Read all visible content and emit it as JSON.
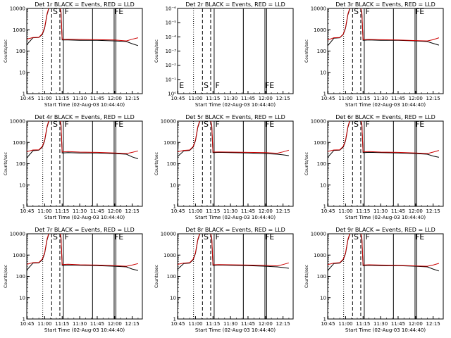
{
  "figure": {
    "start_time_label": "Start Time (02-Aug-03 10:44:40)",
    "ylabel": "Counts/sec",
    "x_tick_labels": [
      "10:45",
      "11:00",
      "11:15",
      "11:30",
      "11:45",
      "12:00",
      "12:15"
    ],
    "y_tick_labels": [
      "1",
      "10",
      "100",
      "1000",
      "10000"
    ],
    "y_tick_labels_panel2": [
      "10⁰",
      "10⁻¹",
      "10⁻²",
      "10⁻³",
      "10⁻⁴",
      "10⁻⁵",
      "10⁻⁶"
    ],
    "colors": {
      "events": "#000000",
      "lld": "#cc0000"
    }
  },
  "chart_data": [
    {
      "type": "line",
      "title": "Det 1r BLACK = Events, RED = LLD",
      "xlabel": "Start Time (02-Aug-03 10:44:40)",
      "ylabel": "Counts/sec",
      "y_scale": "log",
      "ylim": [
        1,
        10000
      ],
      "x_ticks": [
        "10:45",
        "11:00",
        "11:15",
        "11:30",
        "11:45",
        "12:00",
        "12:15"
      ],
      "markers": [
        "S",
        "F",
        "FE"
      ],
      "x": [
        "10:44",
        "10:50",
        "10:55",
        "10:58",
        "11:00",
        "11:02",
        "11:04",
        "11:06",
        "11:10",
        "11:13",
        "11:14",
        "11:15",
        "11:20",
        "11:30",
        "11:45",
        "12:00",
        "12:10",
        "12:15",
        "12:20"
      ],
      "series": [
        {
          "name": "Events",
          "values": [
            180,
            420,
            430,
            600,
            1200,
            5000,
            12000,
            12000,
            12000,
            11000,
            6000,
            330,
            330,
            320,
            320,
            300,
            280,
            220,
            180
          ]
        },
        {
          "name": "LLD",
          "values": [
            350,
            430,
            440,
            650,
            1300,
            5500,
            13000,
            13000,
            13000,
            12000,
            7000,
            350,
            360,
            350,
            340,
            330,
            300,
            360,
            420
          ]
        }
      ]
    },
    {
      "type": "line",
      "title": "Det 2r BLACK = Events, RED = LLD",
      "xlabel": "Start Time (02-Aug-03 10:44:40)",
      "ylabel": "Counts/sec",
      "y_scale": "log",
      "ylim": [
        1,
        1e-06
      ],
      "x_ticks": [
        "10:45",
        "11:00",
        "11:15",
        "11:30",
        "11:45",
        "12:00",
        "12:15"
      ],
      "markers": [
        "E",
        "S",
        "F",
        "FE"
      ],
      "x": [],
      "series": []
    },
    {
      "type": "line",
      "title": "Det 3r BLACK = Events, RED = LLD",
      "xlabel": "Start Time (02-Aug-03 10:44:40)",
      "ylabel": "Counts/sec",
      "y_scale": "log",
      "ylim": [
        1,
        10000
      ],
      "x_ticks": [
        "10:45",
        "11:00",
        "11:15",
        "11:30",
        "11:45",
        "12:00",
        "12:15"
      ],
      "markers": [
        "S",
        "F",
        "FE"
      ],
      "x": [
        "10:44",
        "10:50",
        "10:55",
        "10:58",
        "11:00",
        "11:02",
        "11:04",
        "11:06",
        "11:10",
        "11:13",
        "11:14",
        "11:15",
        "11:20",
        "11:30",
        "11:45",
        "12:00",
        "12:10",
        "12:15",
        "12:20"
      ],
      "series": [
        {
          "name": "Events",
          "values": [
            160,
            400,
            420,
            600,
            1200,
            5000,
            11000,
            11000,
            11000,
            10000,
            5000,
            320,
            330,
            320,
            320,
            300,
            280,
            230,
            190
          ]
        },
        {
          "name": "LLD",
          "values": [
            320,
            420,
            430,
            620,
            1300,
            5500,
            12000,
            12000,
            12000,
            11000,
            6000,
            340,
            350,
            340,
            330,
            310,
            300,
            340,
            420
          ]
        }
      ]
    },
    {
      "type": "line",
      "title": "Det 4r BLACK = Events, RED = LLD",
      "xlabel": "Start Time (02-Aug-03 10:44:40)",
      "ylabel": "Counts/sec",
      "y_scale": "log",
      "ylim": [
        1,
        10000
      ],
      "x_ticks": [
        "10:45",
        "11:00",
        "11:15",
        "11:30",
        "11:45",
        "12:00",
        "12:15"
      ],
      "markers": [
        "S",
        "F",
        "FE"
      ],
      "x": [
        "10:44",
        "10:50",
        "10:55",
        "10:58",
        "11:00",
        "11:02",
        "11:04",
        "11:06",
        "11:10",
        "11:13",
        "11:14",
        "11:15",
        "11:20",
        "11:30",
        "11:45",
        "12:00",
        "12:10",
        "12:15",
        "12:20"
      ],
      "series": [
        {
          "name": "Events",
          "values": [
            170,
            410,
            430,
            600,
            1200,
            5000,
            12000,
            12000,
            12000,
            11000,
            6000,
            320,
            330,
            320,
            320,
            300,
            280,
            210,
            170
          ]
        },
        {
          "name": "LLD",
          "values": [
            360,
            440,
            450,
            650,
            1300,
            5500,
            13000,
            13000,
            13000,
            12000,
            7000,
            360,
            370,
            350,
            340,
            320,
            300,
            340,
            400
          ]
        }
      ]
    },
    {
      "type": "line",
      "title": "Det 5r BLACK = Events, RED = LLD",
      "xlabel": "Start Time (02-Aug-03 10:44:40)",
      "ylabel": "Counts/sec",
      "y_scale": "log",
      "ylim": [
        1,
        10000
      ],
      "x_ticks": [
        "10:45",
        "11:00",
        "11:15",
        "11:30",
        "11:45",
        "12:00",
        "12:15"
      ],
      "markers": [
        "S",
        "F",
        "FE"
      ],
      "x": [
        "10:44",
        "10:50",
        "10:55",
        "10:58",
        "11:00",
        "11:02",
        "11:04",
        "11:06",
        "11:10",
        "11:13",
        "11:14",
        "11:15",
        "11:20",
        "11:30",
        "11:45",
        "12:00",
        "12:10",
        "12:15",
        "12:20"
      ],
      "series": [
        {
          "name": "Events",
          "values": [
            200,
            400,
            420,
            600,
            1200,
            5000,
            11000,
            11000,
            11000,
            10000,
            5000,
            330,
            340,
            330,
            320,
            300,
            280,
            260,
            240
          ]
        },
        {
          "name": "LLD",
          "values": [
            360,
            420,
            440,
            640,
            1300,
            5500,
            12000,
            12000,
            12000,
            11000,
            6000,
            350,
            360,
            350,
            340,
            330,
            310,
            360,
            430
          ]
        }
      ]
    },
    {
      "type": "line",
      "title": "Det 6r BLACK = Events, RED = LLD",
      "xlabel": "Start Time (02-Aug-03 10:44:40)",
      "ylabel": "Counts/sec",
      "y_scale": "log",
      "ylim": [
        1,
        10000
      ],
      "x_ticks": [
        "10:45",
        "11:00",
        "11:15",
        "11:30",
        "11:45",
        "12:00",
        "12:15"
      ],
      "markers": [
        "S",
        "F",
        "FE"
      ],
      "x": [
        "10:44",
        "10:50",
        "10:55",
        "10:58",
        "11:00",
        "11:02",
        "11:04",
        "11:06",
        "11:10",
        "11:13",
        "11:14",
        "11:15",
        "11:20",
        "11:30",
        "11:45",
        "12:00",
        "12:10",
        "12:15",
        "12:20"
      ],
      "series": [
        {
          "name": "Events",
          "values": [
            180,
            420,
            430,
            600,
            1200,
            5000,
            12000,
            12000,
            12000,
            11000,
            6000,
            330,
            340,
            330,
            320,
            300,
            280,
            230,
            200
          ]
        },
        {
          "name": "LLD",
          "values": [
            370,
            440,
            450,
            650,
            1300,
            5500,
            13000,
            13000,
            13000,
            12000,
            7000,
            360,
            370,
            350,
            340,
            320,
            300,
            350,
            420
          ]
        }
      ]
    },
    {
      "type": "line",
      "title": "Det 7r BLACK = Events, RED = LLD",
      "xlabel": "Start Time (02-Aug-03 10:44:40)",
      "ylabel": "Counts/sec",
      "y_scale": "log",
      "ylim": [
        1,
        10000
      ],
      "x_ticks": [
        "10:45",
        "11:00",
        "11:15",
        "11:30",
        "11:45",
        "12:00",
        "12:15"
      ],
      "markers": [
        "S",
        "F",
        "FE"
      ],
      "x": [
        "10:44",
        "10:50",
        "10:55",
        "10:58",
        "11:00",
        "11:02",
        "11:04",
        "11:06",
        "11:10",
        "11:13",
        "11:14",
        "11:15",
        "11:20",
        "11:30",
        "11:45",
        "12:00",
        "12:10",
        "12:15",
        "12:20"
      ],
      "series": [
        {
          "name": "Events",
          "values": [
            180,
            420,
            430,
            600,
            1200,
            5000,
            12000,
            12000,
            12000,
            11000,
            6000,
            330,
            340,
            330,
            320,
            300,
            280,
            220,
            190
          ]
        },
        {
          "name": "LLD",
          "values": [
            360,
            440,
            450,
            650,
            1300,
            5500,
            13000,
            13000,
            13000,
            12000,
            7000,
            360,
            370,
            350,
            340,
            320,
            300,
            340,
            400
          ]
        }
      ]
    },
    {
      "type": "line",
      "title": "Det 8r BLACK = Events, RED = LLD",
      "xlabel": "Start Time (02-Aug-03 10:44:40)",
      "ylabel": "Counts/sec",
      "y_scale": "log",
      "ylim": [
        1,
        10000
      ],
      "x_ticks": [
        "10:45",
        "11:00",
        "11:15",
        "11:30",
        "11:45",
        "12:00",
        "12:15"
      ],
      "markers": [
        "S",
        "F",
        "FE"
      ],
      "x": [
        "10:44",
        "10:50",
        "10:55",
        "10:58",
        "11:00",
        "11:02",
        "11:04",
        "11:06",
        "11:10",
        "11:13",
        "11:14",
        "11:15",
        "11:20",
        "11:30",
        "11:45",
        "12:00",
        "12:10",
        "12:15",
        "12:20"
      ],
      "series": [
        {
          "name": "Events",
          "values": [
            200,
            400,
            420,
            600,
            1200,
            5000,
            11000,
            11000,
            11000,
            10000,
            5000,
            330,
            340,
            330,
            320,
            300,
            280,
            260,
            240
          ]
        },
        {
          "name": "LLD",
          "values": [
            360,
            420,
            440,
            640,
            1300,
            5500,
            12000,
            12000,
            12000,
            11000,
            6000,
            350,
            360,
            350,
            340,
            330,
            310,
            360,
            430
          ]
        }
      ]
    },
    {
      "type": "line",
      "title": "Det 9r BLACK = Events, RED = LLD",
      "xlabel": "Start Time (02-Aug-03 10:44:40)",
      "ylabel": "Counts/sec",
      "y_scale": "log",
      "ylim": [
        1,
        10000
      ],
      "x_ticks": [
        "10:45",
        "11:00",
        "11:15",
        "11:30",
        "11:45",
        "12:00",
        "12:15"
      ],
      "markers": [
        "S",
        "F",
        "FE"
      ],
      "x": [
        "10:44",
        "10:50",
        "10:55",
        "10:58",
        "11:00",
        "11:02",
        "11:04",
        "11:06",
        "11:10",
        "11:13",
        "11:14",
        "11:15",
        "11:20",
        "11:30",
        "11:45",
        "12:00",
        "12:10",
        "12:15",
        "12:20"
      ],
      "series": [
        {
          "name": "Events",
          "values": [
            170,
            400,
            420,
            600,
            1200,
            5000,
            11000,
            11000,
            11000,
            10000,
            5000,
            320,
            330,
            320,
            320,
            300,
            280,
            220,
            180
          ]
        },
        {
          "name": "LLD",
          "values": [
            350,
            420,
            440,
            640,
            1300,
            5500,
            12000,
            12000,
            12000,
            11000,
            6000,
            340,
            350,
            340,
            330,
            310,
            300,
            340,
            410
          ]
        }
      ]
    }
  ]
}
